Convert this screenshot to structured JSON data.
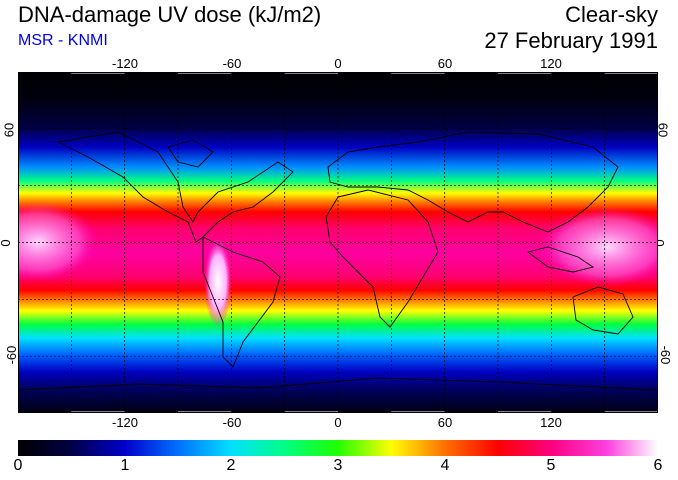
{
  "header": {
    "title": "DNA-damage UV dose (kJ/m2)",
    "subtitle": "MSR - KNMI",
    "sky": "Clear-sky",
    "date": "27 February 1991"
  },
  "map": {
    "lon_ticks": [
      "-120",
      "-60",
      "0",
      "60",
      "120"
    ],
    "lat_ticks": [
      "60",
      "0",
      "-60"
    ],
    "lon_range": [
      -180,
      180
    ],
    "lat_range": [
      -90,
      90
    ],
    "grid_spacing_deg": 30,
    "grid": "dashed"
  },
  "colorbar": {
    "min": 0,
    "max": 6,
    "labels": [
      "0",
      "1",
      "2",
      "3",
      "4",
      "5",
      "6"
    ],
    "colors": [
      "#000008",
      "#0000cc",
      "#00c8ff",
      "#00ff40",
      "#ffff00",
      "#ff0000",
      "#ff00a0",
      "#ffffff"
    ]
  }
}
